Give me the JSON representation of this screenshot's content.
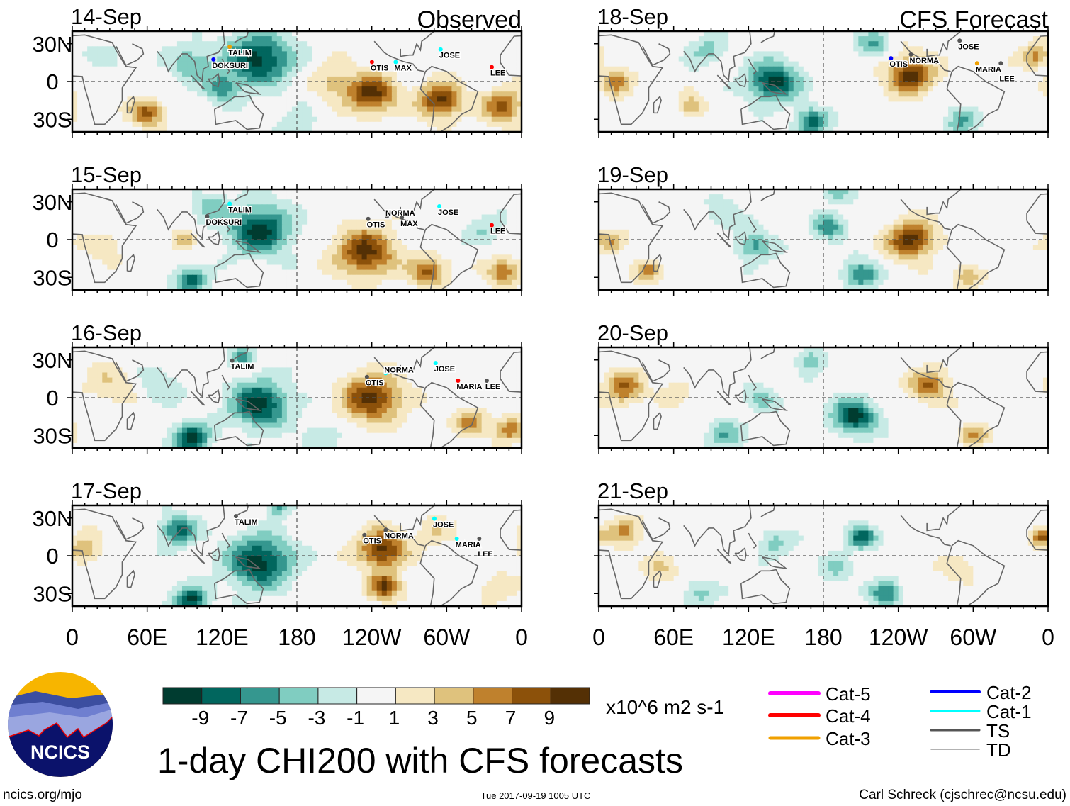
{
  "chart_data": {
    "type": "heatmap",
    "title": "1-day CHI200 with CFS forecasts",
    "units": "x10^6 m2 s-1",
    "levels": [
      -9,
      -7,
      -5,
      -3,
      -1,
      1,
      3,
      5,
      7,
      9
    ],
    "level_labels": [
      "-9",
      "-7",
      "-5",
      "-3",
      "-1",
      "1",
      "3",
      "5",
      "7",
      "9"
    ],
    "colors": [
      "#003c30",
      "#01665e",
      "#35978f",
      "#80cdc1",
      "#c7eae5",
      "#f5f5f5",
      "#f6e8c3",
      "#dfc27d",
      "#bf812d",
      "#8c510a",
      "#543005"
    ],
    "x_ticks": [
      "0",
      "60E",
      "120E",
      "180",
      "120W",
      "60W",
      "0"
    ],
    "y_ticks": [
      "30N",
      "0",
      "30S"
    ],
    "lon_range": [
      0,
      360
    ],
    "lat_range": [
      -40,
      40
    ],
    "columns": [
      {
        "header": "Observed",
        "panels": [
          {
            "date": "14-Sep",
            "anomalies": [
              [
                150,
                18,
                -10,
                18
              ],
              [
                120,
                -5,
                -6,
                10
              ],
              [
                95,
                15,
                -5,
                12
              ],
              [
                30,
                20,
                -2,
                10
              ],
              [
                60,
                -25,
                8,
                9
              ],
              [
                240,
                -10,
                10,
                13
              ],
              [
                295,
                -15,
                10,
                12
              ],
              [
                345,
                -20,
                8,
                11
              ],
              [
                210,
                0,
                4,
                12
              ],
              [
                180,
                -35,
                -3,
                10
              ]
            ],
            "storms": [
              {
                "name": "TALIM",
                "lon": 125,
                "lat": 23,
                "color": "#f0a000"
              },
              {
                "name": "DOKSURI",
                "lon": 112,
                "lat": 13,
                "color": "#0000ff"
              },
              {
                "name": "OTIS",
                "lon": 239,
                "lat": 11,
                "color": "#ff0000"
              },
              {
                "name": "MAX",
                "lon": 258,
                "lat": 11,
                "color": "#00ffff"
              },
              {
                "name": "JOSE",
                "lon": 294,
                "lat": 21,
                "color": "#00ffff"
              },
              {
                "name": "LEE",
                "lon": 335,
                "lat": 7,
                "color": "#ff0000"
              }
            ]
          },
          {
            "date": "15-Sep",
            "anomalies": [
              [
                150,
                8,
                -10,
                17
              ],
              [
                95,
                -32,
                -8,
                9
              ],
              [
                110,
                25,
                -4,
                10
              ],
              [
                330,
                8,
                -3,
                10
              ],
              [
                235,
                -10,
                10,
                16
              ],
              [
                285,
                -25,
                8,
                10
              ],
              [
                90,
                0,
                5,
                7
              ],
              [
                345,
                -25,
                7,
                9
              ],
              [
                25,
                -5,
                3,
                10
              ]
            ],
            "storms": [
              {
                "name": "TALIM",
                "lon": 125,
                "lat": 24,
                "color": "#00ffff"
              },
              {
                "name": "DOKSURI",
                "lon": 107,
                "lat": 14,
                "color": "#555555"
              },
              {
                "name": "OTIS",
                "lon": 236,
                "lat": 12,
                "color": "#555555"
              },
              {
                "name": "NORMA",
                "lon": 251,
                "lat": 14,
                "color": "#555555"
              },
              {
                "name": "MAX",
                "lon": 263,
                "lat": 13,
                "color": "#555555"
              },
              {
                "name": "JOSE",
                "lon": 293,
                "lat": 22,
                "color": "#00ffff"
              },
              {
                "name": "LEE",
                "lon": 335,
                "lat": 7,
                "color": "#ff0000"
              }
            ]
          },
          {
            "date": "16-Sep",
            "anomalies": [
              [
                150,
                -5,
                -10,
                16
              ],
              [
                95,
                -32,
                -10,
                10
              ],
              [
                135,
                32,
                -7,
                6
              ],
              [
                70,
                10,
                -3,
                12
              ],
              [
                240,
                0,
                10,
                16
              ],
              [
                320,
                -20,
                6,
                9
              ],
              [
                30,
                10,
                3,
                14
              ],
              [
                350,
                -25,
                7,
                8
              ],
              [
                200,
                -30,
                -3,
                10
              ]
            ],
            "storms": [
              {
                "name": "TALIM",
                "lon": 127,
                "lat": 25,
                "color": "#555555"
              },
              {
                "name": "OTIS",
                "lon": 235,
                "lat": 12,
                "color": "#555555"
              },
              {
                "name": "NORMA",
                "lon": 250,
                "lat": 15,
                "color": "#00ffff"
              },
              {
                "name": "JOSE",
                "lon": 290,
                "lat": 23,
                "color": "#00ffff"
              },
              {
                "name": "MARIA",
                "lon": 308,
                "lat": 9,
                "color": "#ff0000"
              },
              {
                "name": "LEE",
                "lon": 331,
                "lat": 9,
                "color": "#555555"
              }
            ]
          },
          {
            "date": "17-Sep",
            "anomalies": [
              [
                150,
                -5,
                -10,
                18
              ],
              [
                85,
                20,
                -8,
                10
              ],
              [
                95,
                -35,
                -10,
                9
              ],
              [
                165,
                38,
                -6,
                6
              ],
              [
                248,
                5,
                10,
                13
              ],
              [
                250,
                -25,
                9,
                9
              ],
              [
                10,
                5,
                5,
                9
              ],
              [
                290,
                20,
                3,
                10
              ],
              [
                340,
                -25,
                3,
                10
              ]
            ],
            "storms": [
              {
                "name": "TALIM",
                "lon": 130,
                "lat": 27,
                "color": "#555555"
              },
              {
                "name": "OTIS",
                "lon": 233,
                "lat": 12,
                "color": "#555555"
              },
              {
                "name": "NORMA",
                "lon": 250,
                "lat": 16,
                "color": "#555555"
              },
              {
                "name": "JOSE",
                "lon": 289,
                "lat": 25,
                "color": "#00ffff"
              },
              {
                "name": "MARIA",
                "lon": 307,
                "lat": 9,
                "color": "#00ffff"
              },
              {
                "name": "LEE",
                "lon": 325,
                "lat": 9,
                "color": "#555555"
              }
            ]
          }
        ]
      },
      {
        "header": "CFS Forecast",
        "panels": [
          {
            "date": "18-Sep",
            "anomalies": [
              [
                140,
                0,
                -10,
                14
              ],
              [
                170,
                -32,
                -8,
                9
              ],
              [
                290,
                -32,
                -5,
                9
              ],
              [
                220,
                30,
                -5,
                9
              ],
              [
                85,
                25,
                -4,
                10
              ],
              [
                250,
                5,
                10,
                13
              ],
              [
                15,
                0,
                6,
                9
              ],
              [
                75,
                -20,
                5,
                7
              ],
              [
                350,
                20,
                6,
                8
              ]
            ],
            "storms": [
              {
                "name": "JOSE",
                "lon": 288,
                "lat": 28,
                "color": "#555555"
              },
              {
                "name": "OTIS",
                "lon": 233,
                "lat": 14,
                "color": "#0000ff"
              },
              {
                "name": "NORMA",
                "lon": 249,
                "lat": 17,
                "color": "#555555"
              },
              {
                "name": "MARIA",
                "lon": 302,
                "lat": 10,
                "color": "#f0a000"
              },
              {
                "name": "LEE",
                "lon": 321,
                "lat": 10,
                "color": "#555555"
              }
            ]
          },
          {
            "date": "19-Sep",
            "anomalies": [
              [
                125,
                -5,
                -6,
                10
              ],
              [
                185,
                10,
                -6,
                9
              ],
              [
                210,
                -28,
                -8,
                9
              ],
              [
                190,
                38,
                -5,
                7
              ],
              [
                250,
                0,
                10,
                13
              ],
              [
                10,
                0,
                5,
                8
              ],
              [
                40,
                -25,
                6,
                7
              ],
              [
                295,
                -30,
                5,
                8
              ],
              [
                100,
                20,
                -3,
                10
              ]
            ],
            "storms": []
          },
          {
            "date": "20-Sep",
            "anomalies": [
              [
                205,
                -15,
                -10,
                12
              ],
              [
                100,
                -30,
                -5,
                10
              ],
              [
                130,
                0,
                -4,
                9
              ],
              [
                170,
                30,
                -5,
                8
              ],
              [
                20,
                8,
                7,
                11
              ],
              [
                265,
                10,
                7,
                11
              ],
              [
                300,
                -30,
                6,
                7
              ],
              [
                60,
                5,
                3,
                8
              ]
            ],
            "storms": []
          },
          {
            "date": "21-Sep",
            "anomalies": [
              [
                210,
                15,
                -8,
                8
              ],
              [
                230,
                -30,
                -7,
                9
              ],
              [
                140,
                10,
                -4,
                9
              ],
              [
                190,
                -10,
                -3,
                10
              ],
              [
                80,
                -30,
                -4,
                9
              ],
              [
                20,
                20,
                5,
                10
              ],
              [
                355,
                15,
                7,
                6
              ],
              [
                50,
                -10,
                3,
                10
              ],
              [
                290,
                -10,
                3,
                9
              ]
            ],
            "storms": []
          }
        ]
      }
    ]
  },
  "legend": {
    "items": [
      {
        "label": "Cat-5",
        "color": "#ff00ff"
      },
      {
        "label": "Cat-4",
        "color": "#ff0000"
      },
      {
        "label": "Cat-3",
        "color": "#f0a000"
      },
      {
        "label": "Cat-2",
        "color": "#0000ff"
      },
      {
        "label": "Cat-1",
        "color": "#00ffff"
      },
      {
        "label": "TS",
        "color": "#555555"
      },
      {
        "label": "TD",
        "color": "#999999"
      }
    ]
  },
  "footer": {
    "logo_text": "NCICS",
    "site": "ncics.org/mjo",
    "timestamp": "Tue 2017-09-19 1005 UTC",
    "credit": "Carl Schreck (cjschrec@ncsu.edu)"
  }
}
